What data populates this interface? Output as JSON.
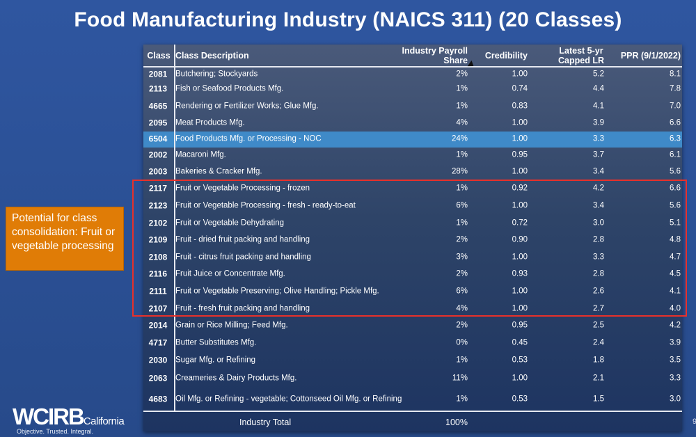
{
  "title": "Food Manufacturing Industry (NAICS 311) (20 Classes)",
  "table": {
    "headers": {
      "class": "Class",
      "description": "Class Description",
      "payroll_line1": "Industry Payroll",
      "payroll_line2": "Share",
      "credibility": "Credibility",
      "lr_line1": "Latest 5-yr",
      "lr_line2": "Capped LR",
      "ppr": "PPR (9/1/2022)"
    },
    "rows": [
      {
        "class": "2081",
        "description": "Butchering; Stockyards",
        "payroll": "2%",
        "credibility": "1.00",
        "lr": "5.2",
        "ppr": "8.1"
      },
      {
        "class": "2113",
        "description": "Fish or Seafood Products Mfg.",
        "payroll": "1%",
        "credibility": "0.74",
        "lr": "4.4",
        "ppr": "7.8"
      },
      {
        "class": "4665",
        "description": "Rendering or Fertilizer Works; Glue Mfg.",
        "payroll": "1%",
        "credibility": "0.83",
        "lr": "4.1",
        "ppr": "7.0"
      },
      {
        "class": "2095",
        "description": "Meat Products Mfg.",
        "payroll": "4%",
        "credibility": "1.00",
        "lr": "3.9",
        "ppr": "6.6"
      },
      {
        "class": "6504",
        "description": "Food Products Mfg. or Processing - NOC",
        "payroll": "24%",
        "credibility": "1.00",
        "lr": "3.3",
        "ppr": "6.3",
        "highlighted": true
      },
      {
        "class": "2002",
        "description": "Macaroni Mfg.",
        "payroll": "1%",
        "credibility": "0.95",
        "lr": "3.7",
        "ppr": "6.1"
      },
      {
        "class": "2003",
        "description": "Bakeries & Cracker Mfg.",
        "payroll": "28%",
        "credibility": "1.00",
        "lr": "3.4",
        "ppr": "5.6"
      },
      {
        "class": "2117",
        "description": "Fruit or Vegetable Processing - frozen",
        "payroll": "1%",
        "credibility": "0.92",
        "lr": "4.2",
        "ppr": "6.6"
      },
      {
        "class": "2123",
        "description": "Fruit or Vegetable Processing - fresh - ready-to-eat",
        "payroll": "6%",
        "credibility": "1.00",
        "lr": "3.4",
        "ppr": "5.6"
      },
      {
        "class": "2102",
        "description": "Fruit or Vegetable Dehydrating",
        "payroll": "1%",
        "credibility": "0.72",
        "lr": "3.0",
        "ppr": "5.1"
      },
      {
        "class": "2109",
        "description": "Fruit - dried fruit packing and handling",
        "payroll": "2%",
        "credibility": "0.90",
        "lr": "2.8",
        "ppr": "4.8"
      },
      {
        "class": "2108",
        "description": "Fruit - citrus fruit packing and handling",
        "payroll": "3%",
        "credibility": "1.00",
        "lr": "3.3",
        "ppr": "4.7"
      },
      {
        "class": "2116",
        "description": "Fruit Juice or Concentrate Mfg.",
        "payroll": "2%",
        "credibility": "0.93",
        "lr": "2.8",
        "ppr": "4.5"
      },
      {
        "class": "2111",
        "description": "Fruit or Vegetable Preserving; Olive Handling; Pickle Mfg.",
        "payroll": "6%",
        "credibility": "1.00",
        "lr": "2.6",
        "ppr": "4.1"
      },
      {
        "class": "2107",
        "description": "Fruit - fresh fruit packing and handling",
        "payroll": "4%",
        "credibility": "1.00",
        "lr": "2.7",
        "ppr": "4.0"
      },
      {
        "class": "2014",
        "description": "Grain or Rice Milling; Feed Mfg.",
        "payroll": "2%",
        "credibility": "0.95",
        "lr": "2.5",
        "ppr": "4.2"
      },
      {
        "class": "4717",
        "description": "Butter Substitutes Mfg.",
        "payroll": "0%",
        "credibility": "0.45",
        "lr": "2.4",
        "ppr": "3.9"
      },
      {
        "class": "2030",
        "description": "Sugar Mfg. or Refining",
        "payroll": "1%",
        "credibility": "0.53",
        "lr": "1.8",
        "ppr": "3.5"
      },
      {
        "class": "2063",
        "description": "Creameries & Dairy Products Mfg.",
        "payroll": "11%",
        "credibility": "1.00",
        "lr": "2.1",
        "ppr": "3.3"
      },
      {
        "class": "4683",
        "description": "Oil Mfg. or Refining - vegetable; Cottonseed Oil Mfg. or Refining",
        "payroll": "1%",
        "credibility": "0.53",
        "lr": "1.5",
        "ppr": "3.0"
      }
    ],
    "total": {
      "label": "Industry Total",
      "payroll": "100%"
    }
  },
  "callout": "Potential for class consolidation: Fruit or vegetable processing",
  "colors": {
    "background": "#2b5096",
    "highlight_row": "#3f8ac8",
    "callout": "#e07c06",
    "group_outline": "#e8302a"
  },
  "logo": {
    "name": "WCIRB",
    "region": "California",
    "tagline": "Objective. Trusted. Integral."
  },
  "slide_number": "9"
}
